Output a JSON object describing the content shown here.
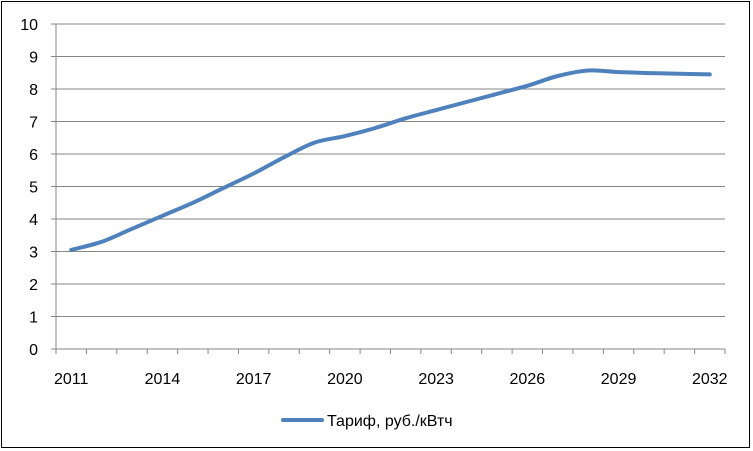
{
  "chart_data": {
    "type": "line",
    "title": "",
    "xlabel": "",
    "ylabel": "",
    "x": [
      2011,
      2012,
      2013,
      2014,
      2015,
      2016,
      2017,
      2018,
      2019,
      2020,
      2021,
      2022,
      2023,
      2024,
      2025,
      2026,
      2027,
      2028,
      2029,
      2030,
      2031,
      2032
    ],
    "series": [
      {
        "name": "Тариф, руб./кВтч",
        "color": "#4f81bd",
        "values": [
          3.05,
          3.3,
          3.7,
          4.1,
          4.5,
          4.95,
          5.4,
          5.9,
          6.35,
          6.55,
          6.8,
          7.1,
          7.35,
          7.6,
          7.85,
          8.1,
          8.4,
          8.57,
          8.52,
          8.49,
          8.47,
          8.45
        ]
      }
    ],
    "xticks": [
      "2011",
      "2014",
      "2017",
      "2020",
      "2023",
      "2026",
      "2029",
      "2032"
    ],
    "yticks": [
      "0",
      "1",
      "2",
      "3",
      "4",
      "5",
      "6",
      "7",
      "8",
      "9",
      "10"
    ],
    "ylim": [
      0,
      10
    ],
    "grid": true,
    "legend_position": "bottom"
  }
}
